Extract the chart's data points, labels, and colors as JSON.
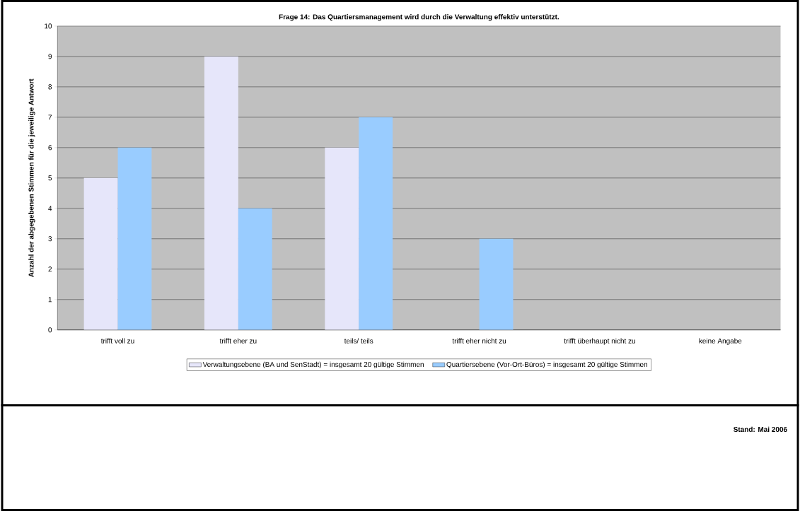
{
  "chart_data": {
    "type": "bar",
    "title": "Frage 14: Das Quartiersmanagement wird durch die Verwaltung effektiv unterstützt.",
    "ylabel": "Anzahl der abgegebenen Stimmen für die jeweilige Antwort",
    "categories": [
      "trifft voll zu",
      "trifft eher zu",
      "teils/ teils",
      "trifft eher nicht zu",
      "trifft überhaupt nicht zu",
      "keine Angabe"
    ],
    "series": [
      {
        "name": "Verwaltungsebene (BA und SenStadt) = insgesamt 20 gültige Stimmen",
        "color": "#e6e6fa",
        "values": [
          5,
          9,
          6,
          0,
          0,
          0
        ]
      },
      {
        "name": "Quartiersebene (Vor-Ort-Büros) = insgesamt 20 gültige Stimmen",
        "color": "#99ccff",
        "values": [
          6,
          4,
          7,
          3,
          0,
          0
        ]
      }
    ],
    "ylim": [
      0,
      10
    ],
    "yticks": [
      0,
      1,
      2,
      3,
      4,
      5,
      6,
      7,
      8,
      9,
      10
    ],
    "grid": "y",
    "legend": "bottom",
    "annotations": [
      "Stand: Mai 2006"
    ]
  }
}
